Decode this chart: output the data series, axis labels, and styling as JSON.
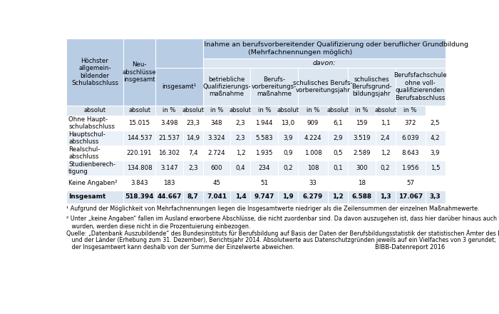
{
  "title_main": "Vorausgegangene Teilnahme an berufsvorbereitender Qualifizierung oder beruflicher Grundbildung",
  "title_sub": "(Mehrfachnennungen möglich)",
  "davon_label": "davon:",
  "subheader": [
    "absolut",
    "absolut",
    "in %",
    "absolut",
    "in %",
    "absolut",
    "in %",
    "absolut",
    "in %",
    "absolut",
    "in %",
    "absolut",
    "in %"
  ],
  "col_headers": [
    "Höchster\nallgemein-\nbildender\nSchulabschluss",
    "Neu-\nabschlüsse\ninsgesamt",
    "insgesamt¹",
    "betriebliche\nQualifizierungs-\nmaßnahme",
    "Berufs-\nvorbereitungs-\nmaßnahme",
    "schulisches Berufs-\nvorbereitungsjahr",
    "schulisches\nBerufsgrund-\nbildungsjahr",
    "Berufsfachschule\nohne voll-\nqualifizierenden\nBerufsabschluss"
  ],
  "rows": [
    [
      "Ohne Haupt-\nschulabschluss",
      "15.015",
      "3.498",
      "23,3",
      "348",
      "2,3",
      "1.944",
      "13,0",
      "909",
      "6,1",
      "159",
      "1,1",
      "372",
      "2,5"
    ],
    [
      "Hauptschul-\nabschluss",
      "144.537",
      "21.537",
      "14,9",
      "3.324",
      "2,3",
      "5.583",
      "3,9",
      "4.224",
      "2,9",
      "3.519",
      "2,4",
      "6.039",
      "4,2"
    ],
    [
      "Realschul-\nabschluss",
      "220.191",
      "16.302",
      "7,4",
      "2.724",
      "1,2",
      "1.935",
      "0,9",
      "1.008",
      "0,5",
      "2.589",
      "1,2",
      "8.643",
      "3,9"
    ],
    [
      "Studienberech-\ntigung",
      "134.808",
      "3.147",
      "2,3",
      "600",
      "0,4",
      "234",
      "0,2",
      "108",
      "0,1",
      "300",
      "0,2",
      "1.956",
      "1,5"
    ],
    [
      "Keine Angaben²",
      "3.843",
      "183",
      "",
      "45",
      "",
      "51",
      "",
      "33",
      "",
      "18",
      "",
      "57",
      ""
    ],
    [
      "Insgesamt",
      "518.394",
      "44.667",
      "8,7",
      "7.041",
      "1,4",
      "9.747",
      "1,9",
      "6.279",
      "1,2",
      "6.588",
      "1,3",
      "17.067",
      "3,3"
    ]
  ],
  "footnote1": "¹ Aufgrund der Möglichkeit von Mehrfachnennungen liegen die Insgesamtwerte niedriger als die Zeilensummen der einzelnen Maßnahmewerte.",
  "footnote2": "² Unter „keine Angaben“ fallen im Ausland erworbene Abschlüsse, die nicht zuordenbar sind. Da davon auszugehen ist, dass hier darüber hinaus auch fehlende Angaben gemeldet\n   wurden, werden diese nicht in die Prozentuierung einbezogen.",
  "source_line1": "Quelle: „Datenbank Auszubildende“ des Bundesinstituts für Berufsbildung auf Basis der Daten der Berufsbildungsstatistik der statistischen Ämter des Bundes",
  "source_line2": "   und der Länder (Erhebung zum 31. Dezember), Berichtsjahr 2014. Absolutwerte aus Datenschutzgründen jeweils auf ein Vielfaches von 3 gerundet;",
  "source_line3": "   der Insgesamtwert kann deshalb von der Summe der Einzelwerte abweichen.",
  "bibb_label": "BIBB-Datenreport 2016",
  "bg_header": "#b8cce4",
  "bg_davon": "#dce6f1",
  "bg_white": "#ffffff",
  "bg_lightblue": "#eaf1f8",
  "bg_total": "#dce6f1",
  "border_color": "#ffffff"
}
